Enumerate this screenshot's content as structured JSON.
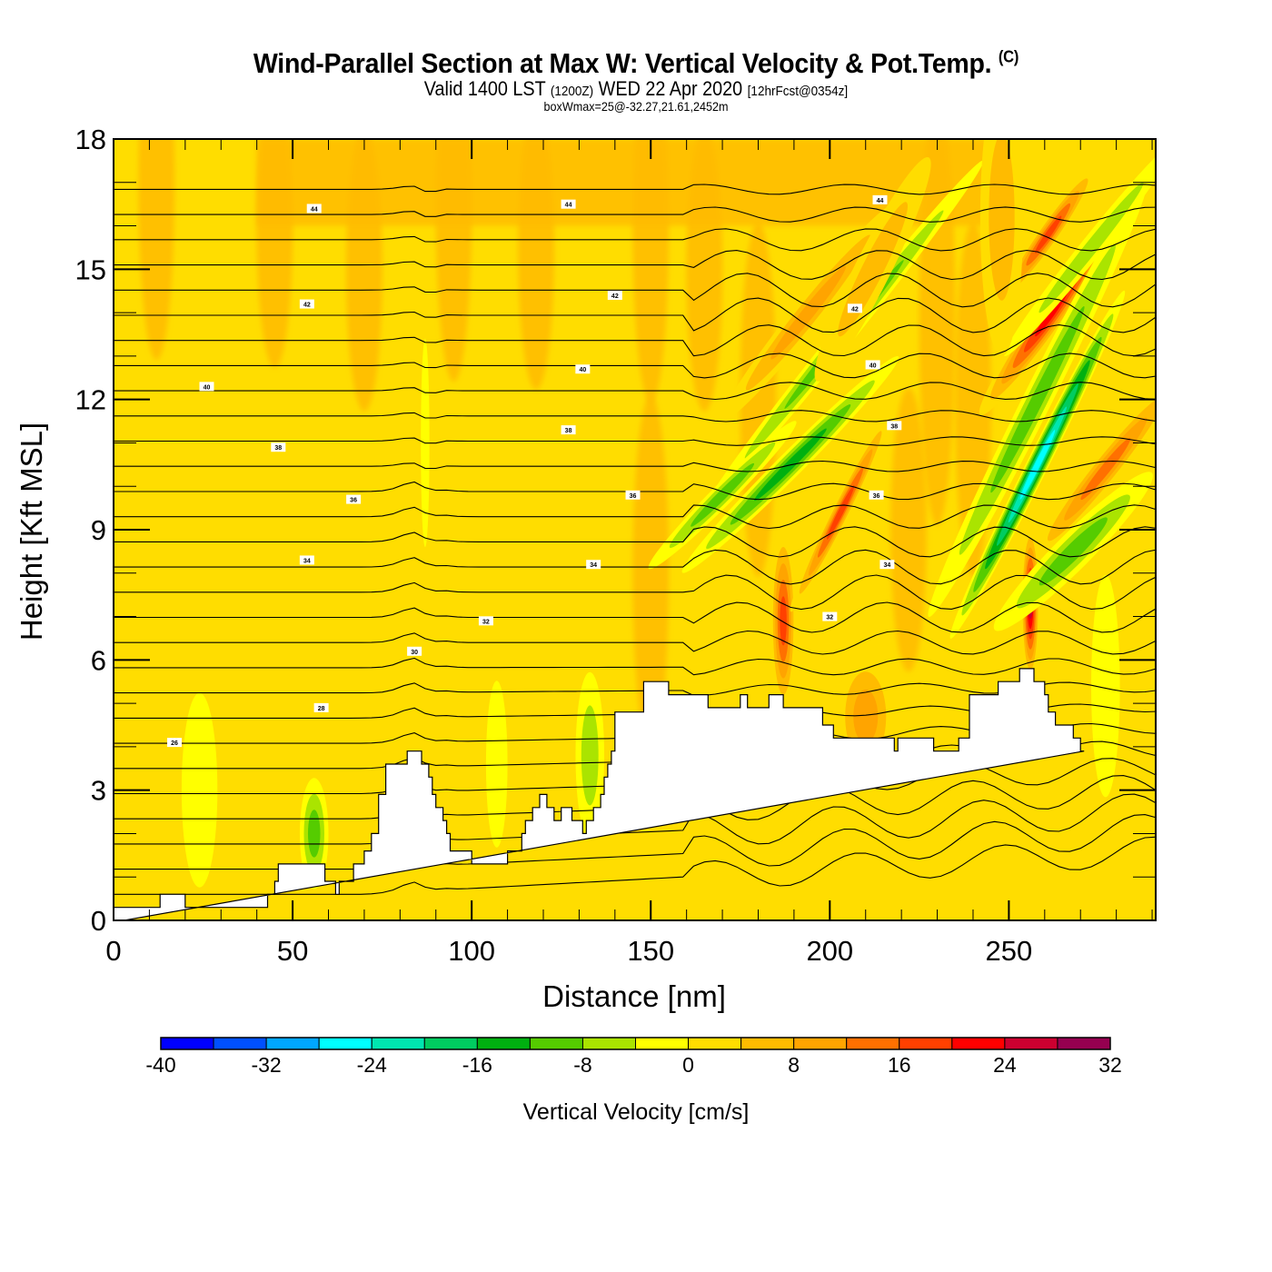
{
  "header": {
    "title": "Wind-Parallel Section at Max W: Vertical Velocity & Pot.Temp.",
    "copyright": "(C)",
    "valid_prefix": "Valid 1400 LST",
    "valid_utc": "(1200Z)",
    "valid_date": "WED 22 Apr 2020",
    "forecast": "[12hrFcst@0354z]",
    "box_info": "boxWmax=25@-32.27,21.61,2452m"
  },
  "chart_data": {
    "type": "heatmap",
    "title": "Wind-Parallel Section at Max W: Vertical Velocity & Pot.Temp.",
    "xlabel": "Distance [nm]",
    "ylabel": "Height [Kft MSL]",
    "xlim": [
      0,
      291
    ],
    "ylim": [
      0,
      18
    ],
    "x_ticks": [
      "0",
      "50",
      "100",
      "150",
      "200",
      "250"
    ],
    "x_tick_values": [
      0,
      50,
      100,
      150,
      200,
      250
    ],
    "x_minor_step": 10,
    "y_ticks": [
      "0",
      "3",
      "6",
      "9",
      "12",
      "15",
      "18"
    ],
    "y_tick_values": [
      0,
      3,
      6,
      9,
      12,
      15,
      18
    ],
    "y_minor_step": 1,
    "colorbar": {
      "title": "Vertical Velocity [cm/s]",
      "levels": [
        -40,
        -36,
        -32,
        -28,
        -24,
        -20,
        -16,
        -12,
        -8,
        -4,
        0,
        4,
        8,
        12,
        16,
        20,
        24,
        28,
        32
      ],
      "tick_labels": [
        "-40",
        "-32",
        "-24",
        "-16",
        "-8",
        "0",
        "8",
        "16",
        "24",
        "32"
      ],
      "tick_values": [
        -40,
        -32,
        -24,
        -16,
        -8,
        0,
        8,
        16,
        24,
        32
      ],
      "colors": [
        "#0000ff",
        "#0050ff",
        "#00a6ff",
        "#00ffff",
        "#00e6b0",
        "#00cc60",
        "#00b010",
        "#55cc00",
        "#aae400",
        "#ffff00",
        "#ffdd00",
        "#ffbb00",
        "#ffa400",
        "#ff7000",
        "#ff4000",
        "#ff0000",
        "#cc0030",
        "#960050"
      ]
    },
    "terrain_kft": {
      "x": [
        0,
        13,
        13,
        20,
        20,
        43,
        43,
        45,
        45,
        46,
        46,
        59,
        59,
        62,
        62,
        63,
        63,
        67,
        67,
        70,
        70,
        72,
        72,
        74,
        74,
        76,
        76,
        82,
        82,
        86,
        86,
        88,
        88,
        89,
        89,
        90,
        90,
        92,
        92,
        93,
        93,
        94,
        94,
        96,
        96,
        100,
        100,
        110,
        110,
        114,
        114,
        115,
        115,
        117,
        117,
        119,
        119,
        121,
        121,
        123,
        123,
        125,
        125,
        128,
        128,
        131,
        131,
        132,
        132,
        134,
        134,
        136,
        136,
        137,
        137,
        138,
        138,
        139,
        139,
        140,
        140,
        148,
        148,
        155,
        155,
        166,
        166,
        175,
        175,
        177,
        177,
        183,
        183,
        187,
        187,
        198,
        198,
        201,
        201,
        204,
        204,
        218,
        218,
        219,
        219,
        229,
        229,
        236,
        236,
        239,
        239,
        247,
        247,
        253,
        253,
        257,
        257,
        260,
        260,
        261,
        261,
        263,
        263,
        268,
        268,
        270,
        270,
        271,
        271,
        291
      ],
      "y": [
        0.3,
        0.3,
        0.6,
        0.6,
        0.3,
        0.3,
        0.6,
        0.6,
        0.9,
        0.9,
        1.3,
        1.3,
        0.9,
        0.9,
        0.6,
        0.6,
        0.9,
        0.9,
        1.3,
        1.3,
        1.6,
        1.6,
        2.0,
        2.0,
        2.9,
        2.9,
        3.6,
        3.6,
        3.9,
        3.9,
        3.6,
        3.6,
        3.3,
        3.3,
        2.9,
        2.9,
        2.6,
        2.6,
        2.3,
        2.3,
        2.0,
        2.0,
        1.6,
        1.6,
        1.6,
        1.6,
        1.3,
        1.3,
        1.6,
        1.6,
        2.0,
        2.0,
        2.3,
        2.3,
        2.6,
        2.6,
        2.9,
        2.9,
        2.6,
        2.6,
        2.3,
        2.3,
        2.6,
        2.6,
        2.3,
        2.3,
        2.0,
        2.0,
        2.3,
        2.3,
        2.6,
        2.6,
        2.9,
        2.9,
        3.3,
        3.3,
        3.6,
        3.6,
        3.9,
        3.9,
        4.8,
        4.8,
        5.5,
        5.5,
        5.2,
        5.2,
        4.9,
        4.9,
        5.2,
        5.2,
        4.9,
        4.9,
        5.2,
        5.2,
        4.9,
        4.9,
        4.5,
        4.5,
        4.2,
        4.2,
        4.2,
        4.2,
        3.9,
        3.9,
        4.2,
        4.2,
        3.9,
        3.9,
        4.2,
        4.2,
        5.2,
        5.2,
        5.5,
        5.5,
        5.8,
        5.8,
        5.5,
        5.5,
        5.2,
        5.2,
        4.8,
        4.8,
        4.5,
        4.5,
        4.2,
        4.2,
        3.9,
        3.9
      ]
    },
    "theta_contour_labels": [
      {
        "value": "44",
        "x": 56,
        "y": 16.4
      },
      {
        "value": "44",
        "x": 127,
        "y": 16.5
      },
      {
        "value": "44",
        "x": 214,
        "y": 16.6
      },
      {
        "value": "42",
        "x": 54,
        "y": 14.2
      },
      {
        "value": "42",
        "x": 140,
        "y": 14.4
      },
      {
        "value": "42",
        "x": 207,
        "y": 14.1
      },
      {
        "value": "40",
        "x": 26,
        "y": 12.3
      },
      {
        "value": "40",
        "x": 131,
        "y": 12.7
      },
      {
        "value": "40",
        "x": 212,
        "y": 12.8
      },
      {
        "value": "38",
        "x": 46,
        "y": 10.9
      },
      {
        "value": "38",
        "x": 127,
        "y": 11.3
      },
      {
        "value": "38",
        "x": 218,
        "y": 11.4
      },
      {
        "value": "36",
        "x": 67,
        "y": 9.7
      },
      {
        "value": "36",
        "x": 145,
        "y": 9.8
      },
      {
        "value": "36",
        "x": 213,
        "y": 9.8
      },
      {
        "value": "34",
        "x": 54,
        "y": 8.3
      },
      {
        "value": "34",
        "x": 134,
        "y": 8.2
      },
      {
        "value": "34",
        "x": 216,
        "y": 8.2
      },
      {
        "value": "32",
        "x": 104,
        "y": 6.9
      },
      {
        "value": "32",
        "x": 200,
        "y": 7.0
      },
      {
        "value": "30",
        "x": 84,
        "y": 6.2
      },
      {
        "value": "28",
        "x": 58,
        "y": 4.9
      },
      {
        "value": "26",
        "x": 17,
        "y": 4.1
      }
    ],
    "velocity_features": [
      {
        "x": 262,
        "y": 14.0,
        "w_cms": 26,
        "sx": 4,
        "sy": 1.8,
        "tilt": 0.07
      },
      {
        "x": 261,
        "y": 15.8,
        "w_cms": 20,
        "sx": 3,
        "sy": 1.2,
        "tilt": 0.07
      },
      {
        "x": 277,
        "y": 10.4,
        "w_cms": 18,
        "sx": 4,
        "sy": 1.7,
        "tilt": 0.08
      },
      {
        "x": 258,
        "y": 10.5,
        "w_cms": -30,
        "sx": 3,
        "sy": 2.8,
        "tilt": 0.05
      },
      {
        "x": 258,
        "y": 12.0,
        "w_cms": -14,
        "sx": 4,
        "sy": 3.5,
        "tilt": 0.05
      },
      {
        "x": 256,
        "y": 7.3,
        "w_cms": 28,
        "sx": 2.5,
        "sy": 1.1,
        "tilt": 0.0
      },
      {
        "x": 268,
        "y": 8.5,
        "w_cms": -14,
        "sx": 5,
        "sy": 1.6,
        "tilt": 0.1
      },
      {
        "x": 273,
        "y": 15.5,
        "w_cms": -8,
        "sx": 3,
        "sy": 2.0,
        "tilt": 0.08
      },
      {
        "x": 187,
        "y": 6.9,
        "w_cms": 22,
        "sx": 3.5,
        "sy": 1.3,
        "tilt": 0.0
      },
      {
        "x": 203,
        "y": 9.4,
        "w_cms": 22,
        "sx": 2.5,
        "sy": 1.6,
        "tilt": 0.05
      },
      {
        "x": 204,
        "y": 13.5,
        "w_cms": -14,
        "sx": 3,
        "sy": 3.2,
        "tilt": 0.08
      },
      {
        "x": 189,
        "y": 10.5,
        "w_cms": -18,
        "sx": 3.5,
        "sy": 2.2,
        "tilt": 0.1
      },
      {
        "x": 170,
        "y": 9.8,
        "w_cms": -12,
        "sx": 3,
        "sy": 1.5,
        "tilt": 0.1
      },
      {
        "x": 194,
        "y": 14.0,
        "w_cms": 12,
        "sx": 4,
        "sy": 2.0,
        "tilt": 0.08
      },
      {
        "x": 212,
        "y": 15.0,
        "w_cms": 10,
        "sx": 5,
        "sy": 1.8,
        "tilt": 0.05
      },
      {
        "x": 248,
        "y": 16.2,
        "w_cms": 8,
        "sx": 6,
        "sy": 2.0,
        "tilt": 0.0
      },
      {
        "x": 87,
        "y": 11.0,
        "w_cms": -6,
        "sx": 1.2,
        "sy": 1.5,
        "tilt": 0.0
      },
      {
        "x": 24,
        "y": 3.0,
        "w_cms": -6,
        "sx": 5,
        "sy": 1.4,
        "tilt": 0.0
      },
      {
        "x": 56,
        "y": 2.0,
        "w_cms": -12,
        "sx": 4,
        "sy": 0.8,
        "tilt": 0.0
      },
      {
        "x": 133,
        "y": 3.8,
        "w_cms": -8,
        "sx": 4,
        "sy": 1.2,
        "tilt": 0.0
      },
      {
        "x": 107,
        "y": 3.6,
        "w_cms": -6,
        "sx": 3,
        "sy": 1.2,
        "tilt": 0.0
      },
      {
        "x": 210,
        "y": 4.7,
        "w_cms": 12,
        "sx": 8,
        "sy": 0.9,
        "tilt": 0.0
      },
      {
        "x": 277,
        "y": 5.4,
        "w_cms": -6,
        "sx": 4,
        "sy": 1.6,
        "tilt": 0.0
      }
    ]
  }
}
